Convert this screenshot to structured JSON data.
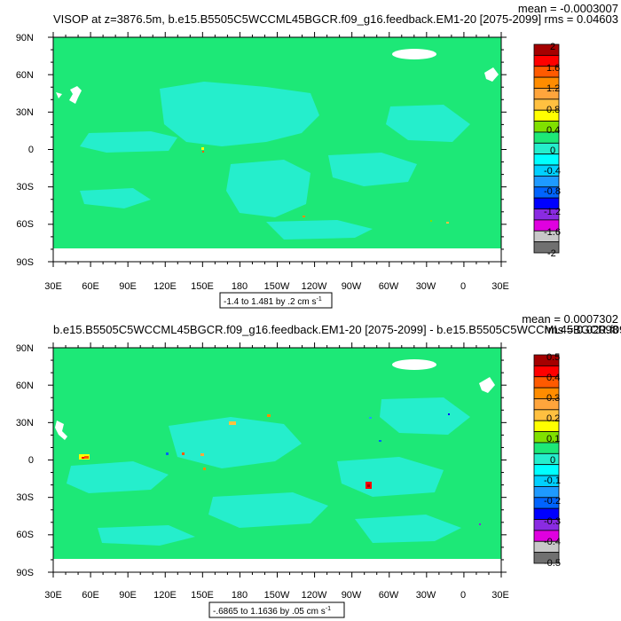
{
  "colors": {
    "ocean": "#1de877",
    "anomaly": "#25eecc",
    "land": "#ffffff",
    "frame": "#000000"
  },
  "axes": {
    "lon_labels": [
      "30E",
      "60E",
      "90E",
      "120E",
      "150E",
      "180",
      "150W",
      "120W",
      "90W",
      "60W",
      "30W",
      "0",
      "30E"
    ],
    "lat_labels": [
      "90N",
      "60N",
      "30N",
      "0",
      "30S",
      "60S",
      "90S"
    ]
  },
  "panels": [
    {
      "title_left": "VISOP at z=3876.5m, b.e15.B5505C5WCCML45BGCR.f09_g16.feedback.EM1-20 [2075-2099]",
      "mean_text": "mean = -0.0003007",
      "rms_text": "rms = 0.04603",
      "contour_info": "-1.4 to 1.481 by .2 cm s",
      "contour_unit_sup": "-1",
      "colorbar": {
        "labels": [
          "2",
          "1.6",
          "1.2",
          "0.8",
          "0.4",
          "0",
          "-0.4",
          "-0.8",
          "-1.2",
          "-1.6",
          "-2"
        ],
        "colors": [
          "#a50000",
          "#ff0000",
          "#ff5a00",
          "#ff8c00",
          "#ffa53c",
          "#ffc040",
          "#ffff00",
          "#80e000",
          "#1de877",
          "#25eecc",
          "#00ffff",
          "#00d0ff",
          "#1e9aff",
          "#0064ff",
          "#0000ff",
          "#8a2be2",
          "#e000e0",
          "#c8c8c8",
          "#707070"
        ]
      }
    },
    {
      "title_left": "b.e15.B5505C5WCCML45BGCR.f09_g16.feedback.EM1-20 [2075-2099] - b.e15.B5505C5WCCML45BGCR.f09_g16.",
      "mean_text": "mean = 0.0007302",
      "rms_text": "rms = 0.02098",
      "contour_info": "-.6865 to 1.1636 by .05 cm s",
      "contour_unit_sup": "-1",
      "colorbar": {
        "labels": [
          "0.5",
          "0.4",
          "0.3",
          "0.2",
          "0.1",
          "0",
          "-0.1",
          "-0.2",
          "-0.3",
          "-0.4",
          "-0.5"
        ],
        "colors": [
          "#a50000",
          "#ff0000",
          "#ff5a00",
          "#ff8c00",
          "#ffa53c",
          "#ffc040",
          "#ffff00",
          "#80e000",
          "#1de877",
          "#25eecc",
          "#00ffff",
          "#00d0ff",
          "#1e9aff",
          "#0064ff",
          "#0000ff",
          "#8a2be2",
          "#e000e0",
          "#c8c8c8",
          "#707070"
        ]
      }
    }
  ],
  "chart_data": [
    {
      "type": "heatmap",
      "title": "VISOP at z=3876.5m, b.e15.B5505C5WCCML45BGCR.f09_g16.feedback.EM1-20 [2075-2099]",
      "x_range_deg_east": [
        30,
        390
      ],
      "y_range_deg_north": [
        -90,
        90
      ],
      "mean": -0.0003007,
      "rms": 0.04603,
      "data_min": -1.4,
      "data_max": 1.481,
      "contour_interval": 0.2,
      "units": "cm s-1",
      "colorbar_range": [
        -2,
        2
      ]
    },
    {
      "type": "heatmap",
      "title": "b.e15.B5505C5WCCML45BGCR.f09_g16.feedback.EM1-20 [2075-2099] - b.e15.B5505C5WCCML45BGCR.f09_g16.",
      "x_range_deg_east": [
        30,
        390
      ],
      "y_range_deg_north": [
        -90,
        90
      ],
      "mean": 0.0007302,
      "rms": 0.02098,
      "data_min": -0.6865,
      "data_max": 1.1636,
      "contour_interval": 0.05,
      "units": "cm s-1",
      "colorbar_range": [
        -0.5,
        0.5
      ]
    }
  ]
}
